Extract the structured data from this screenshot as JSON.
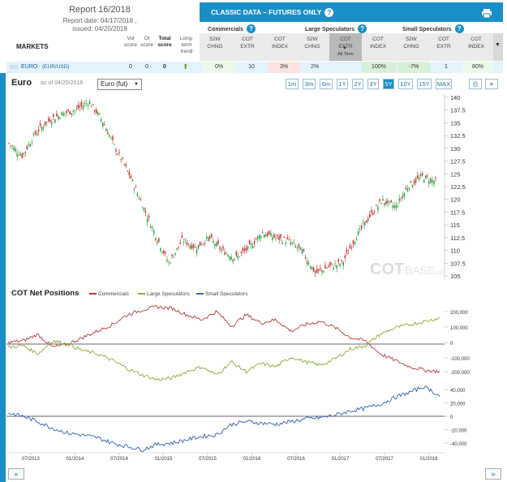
{
  "report": {
    "title": "Report 16/2018",
    "report_date": "Report date: 04/17/2018 ,",
    "issued": "issued: 04/20/2018"
  },
  "markets_label": "MARKETS",
  "left_columns": {
    "vol": "Vol score",
    "oi": "OI score",
    "total": "Total score",
    "trend": "Long-term trend"
  },
  "classic_header": "CLASSIC DATA – FUTURES ONLY",
  "groups": {
    "commercials": "Commercials",
    "large": "Large Speculators",
    "small": "Small Speculators"
  },
  "sub_columns": {
    "chng": "52W CHNG",
    "extr": "COT EXTR",
    "index": "COT INDEX",
    "all_time": "All Time"
  },
  "row": {
    "market": "EURO",
    "pair": "(EUR/USD)",
    "vol": "0",
    "oi": "0",
    "total": "0",
    "c_chng": "0%",
    "c_extr": "10",
    "c_index": "3%",
    "l_chng": "2%",
    "l_index": "100%",
    "s_chng": "-7%",
    "s_extr": "1",
    "s_index": "80%"
  },
  "chart_header": {
    "title": "Euro",
    "as_of": "as of 04/20/2018",
    "instrument": "Euro (fut)"
  },
  "range_buttons": [
    "1m",
    "3m",
    "6m",
    "1Y",
    "2Y",
    "3Y",
    "5Y",
    "10Y",
    "15Y",
    "MAX"
  ],
  "active_range": "5Y",
  "cot_section": {
    "title": "COT Net Positions",
    "legend": [
      "Commercials",
      "Large Speculators",
      "Small Speculators"
    ]
  },
  "watermark": {
    "bold": "COT",
    "light": "BASE",
    "suffix": ".com"
  },
  "nav": {
    "prev": "«",
    "next": "»"
  },
  "colors": {
    "accent": "#1a8fc6",
    "commercials": "#b23a3a",
    "large": "#8aab3a",
    "small": "#2f5fa8",
    "up_candle": "#2e9a3c",
    "down_candle": "#c62828"
  },
  "chart_data": [
    {
      "type": "line",
      "title": "Euro",
      "x": [
        "2013-05",
        "2013-07",
        "2013-09",
        "2013-11",
        "2014-01",
        "2014-03",
        "2014-05",
        "2014-07",
        "2014-09",
        "2014-11",
        "2015-01",
        "2015-02",
        "2015-03",
        "2015-05",
        "2015-07",
        "2015-08",
        "2015-10",
        "2015-12",
        "2016-02",
        "2016-04",
        "2016-06",
        "2016-08",
        "2016-10",
        "2016-12",
        "2017-01",
        "2017-03",
        "2017-05",
        "2017-07",
        "2017-09",
        "2017-11",
        "2018-01",
        "2018-02",
        "2018-04"
      ],
      "series": [
        {
          "values": [
            131,
            128.5,
            133,
            135.5,
            136.8,
            137.5,
            139.2,
            135.5,
            130,
            125,
            119,
            113,
            107.5,
            112,
            110.5,
            112.5,
            110,
            108.5,
            110.5,
            113.5,
            112.5,
            111.8,
            109.8,
            105.5,
            106.8,
            107.5,
            112.5,
            116.5,
            119.8,
            118.5,
            122.8,
            124.5,
            123.5
          ]
        }
      ],
      "ylim": [
        105,
        140
      ],
      "yticks": [
        140,
        137.5,
        135,
        132.5,
        130,
        127.5,
        125,
        122.5,
        120,
        117.5,
        115,
        112.5,
        110,
        107.5,
        105
      ],
      "xticks": [
        "07/2013",
        "01/2014",
        "07/2014",
        "01/2015",
        "07/2015",
        "01/2016",
        "07/2016",
        "01/2017",
        "07/2017",
        "01/2018"
      ]
    },
    {
      "type": "line",
      "title": "COT Net Positions",
      "x": [
        "2013-05",
        "2013-07",
        "2013-09",
        "2013-11",
        "2014-01",
        "2014-03",
        "2014-05",
        "2014-07",
        "2014-09",
        "2014-11",
        "2015-01",
        "2015-03",
        "2015-05",
        "2015-07",
        "2015-09",
        "2015-11",
        "2016-01",
        "2016-03",
        "2016-05",
        "2016-07",
        "2016-09",
        "2016-11",
        "2017-01",
        "2017-03",
        "2017-05",
        "2017-07",
        "2017-09",
        "2017-11",
        "2018-01",
        "2018-04"
      ],
      "series": [
        {
          "name": "Commercials",
          "values": [
            10000,
            20000,
            60000,
            -20000,
            0,
            40000,
            80000,
            120000,
            180000,
            210000,
            230000,
            220000,
            180000,
            150000,
            200000,
            110000,
            180000,
            130000,
            150000,
            80000,
            120000,
            140000,
            100000,
            40000,
            20000,
            -60000,
            -100000,
            -140000,
            -160000,
            -170000
          ]
        },
        {
          "name": "Large Speculators",
          "values": [
            -20000,
            -10000,
            -60000,
            20000,
            0,
            -40000,
            -60000,
            -100000,
            -150000,
            -190000,
            -220000,
            -210000,
            -170000,
            -140000,
            -190000,
            -110000,
            -170000,
            -120000,
            -140000,
            -80000,
            -110000,
            -130000,
            -90000,
            -30000,
            -10000,
            60000,
            100000,
            120000,
            140000,
            160000
          ]
        },
        {
          "name": "Small Speculators",
          "values": [
            5000,
            0,
            -8000,
            -18000,
            -25000,
            -28000,
            -32000,
            -40000,
            -45000,
            -50000,
            -42000,
            -40000,
            -35000,
            -30000,
            -28000,
            -12000,
            -8000,
            -10000,
            -12000,
            -8000,
            -4000,
            -2000,
            2000,
            8000,
            12000,
            18000,
            28000,
            36000,
            45000,
            30000
          ]
        }
      ],
      "ylim_top": [
        -200000,
        200000
      ],
      "yticks_top": [
        "200,000",
        "100,000",
        "0",
        "-100,000",
        "-200,000"
      ],
      "yticks_bottom": [
        "40,000",
        "20,000",
        "0",
        "-20,000",
        "-40,000"
      ]
    }
  ]
}
